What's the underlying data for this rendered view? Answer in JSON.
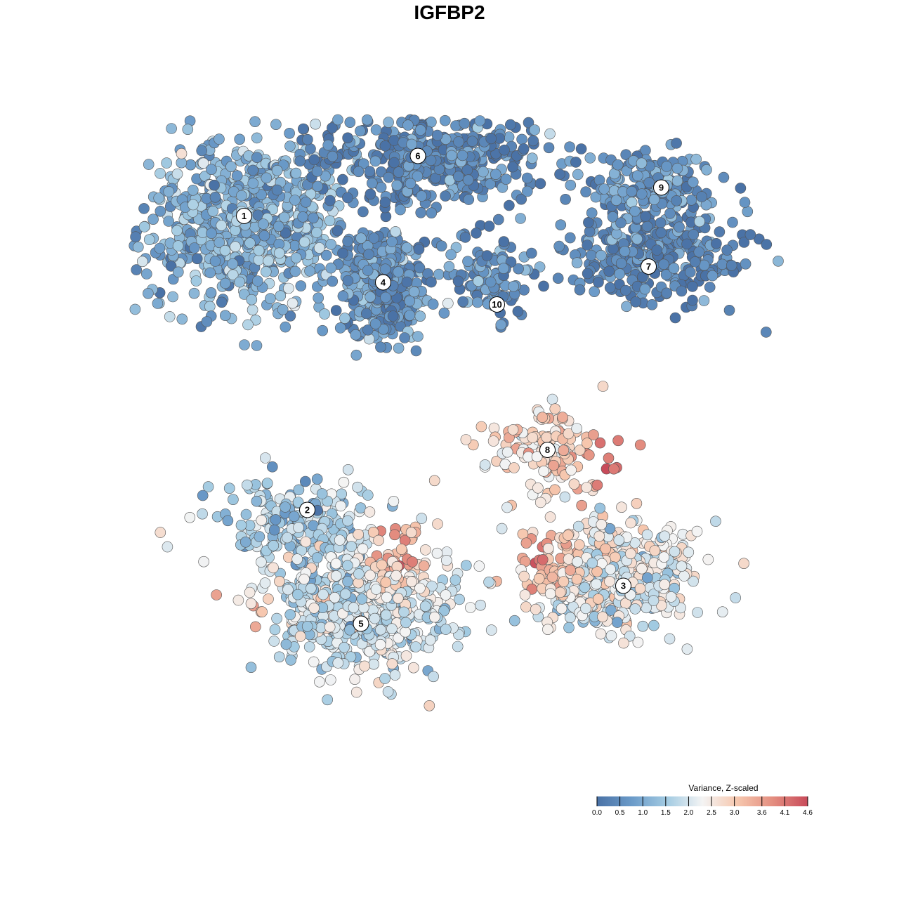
{
  "chart_data": {
    "type": "scatter",
    "title": "IGFBP2",
    "legend": {
      "title": "Variance, Z-scaled",
      "placement": "bottom-right",
      "ticks": [
        0.0,
        0.5,
        1.0,
        1.5,
        2.0,
        2.5,
        3.0,
        3.6,
        4.1,
        4.6
      ],
      "tick_labels": [
        "0.0",
        "0.5",
        "1.0",
        "1.5",
        "2.0",
        "2.5",
        "3.0",
        "3.6",
        "4.1",
        "4.6"
      ],
      "range": [
        0.0,
        4.6
      ],
      "colors": [
        "#4a72a6",
        "#6b9bc9",
        "#a3cbe2",
        "#f4f4f4",
        "#f6c7ae",
        "#e48e80",
        "#c84b5a"
      ]
    },
    "clusters": [
      {
        "label": "1",
        "x": -6.5,
        "y": 6.5,
        "value": 1.1
      },
      {
        "label": "2",
        "x": -4.5,
        "y": -2.8,
        "value": 1.5
      },
      {
        "label": "3",
        "x": 5.5,
        "y": -5.2,
        "value": 2.2
      },
      {
        "label": "4",
        "x": -2.1,
        "y": 4.4,
        "value": 0.6
      },
      {
        "label": "5",
        "x": -2.8,
        "y": -6.4,
        "value": 1.9
      },
      {
        "label": "6",
        "x": -1.0,
        "y": 8.4,
        "value": 0.4
      },
      {
        "label": "7",
        "x": 6.3,
        "y": 4.9,
        "value": 0.3
      },
      {
        "label": "8",
        "x": 3.1,
        "y": -0.9,
        "value": 2.6
      },
      {
        "label": "9",
        "x": 6.7,
        "y": 7.4,
        "value": 0.6
      },
      {
        "label": "10",
        "x": 1.5,
        "y": 3.7,
        "value": 0.5
      }
    ],
    "hotspots": [
      {
        "x": 5.1,
        "y": -1.3,
        "value": 4.4
      },
      {
        "x": -6.9,
        "y": -6.0,
        "value": 4.2
      },
      {
        "x": -1.5,
        "y": -4.0,
        "value": 3.9
      },
      {
        "x": 2.8,
        "y": -4.2,
        "value": 4.0
      }
    ],
    "grid": false
  }
}
